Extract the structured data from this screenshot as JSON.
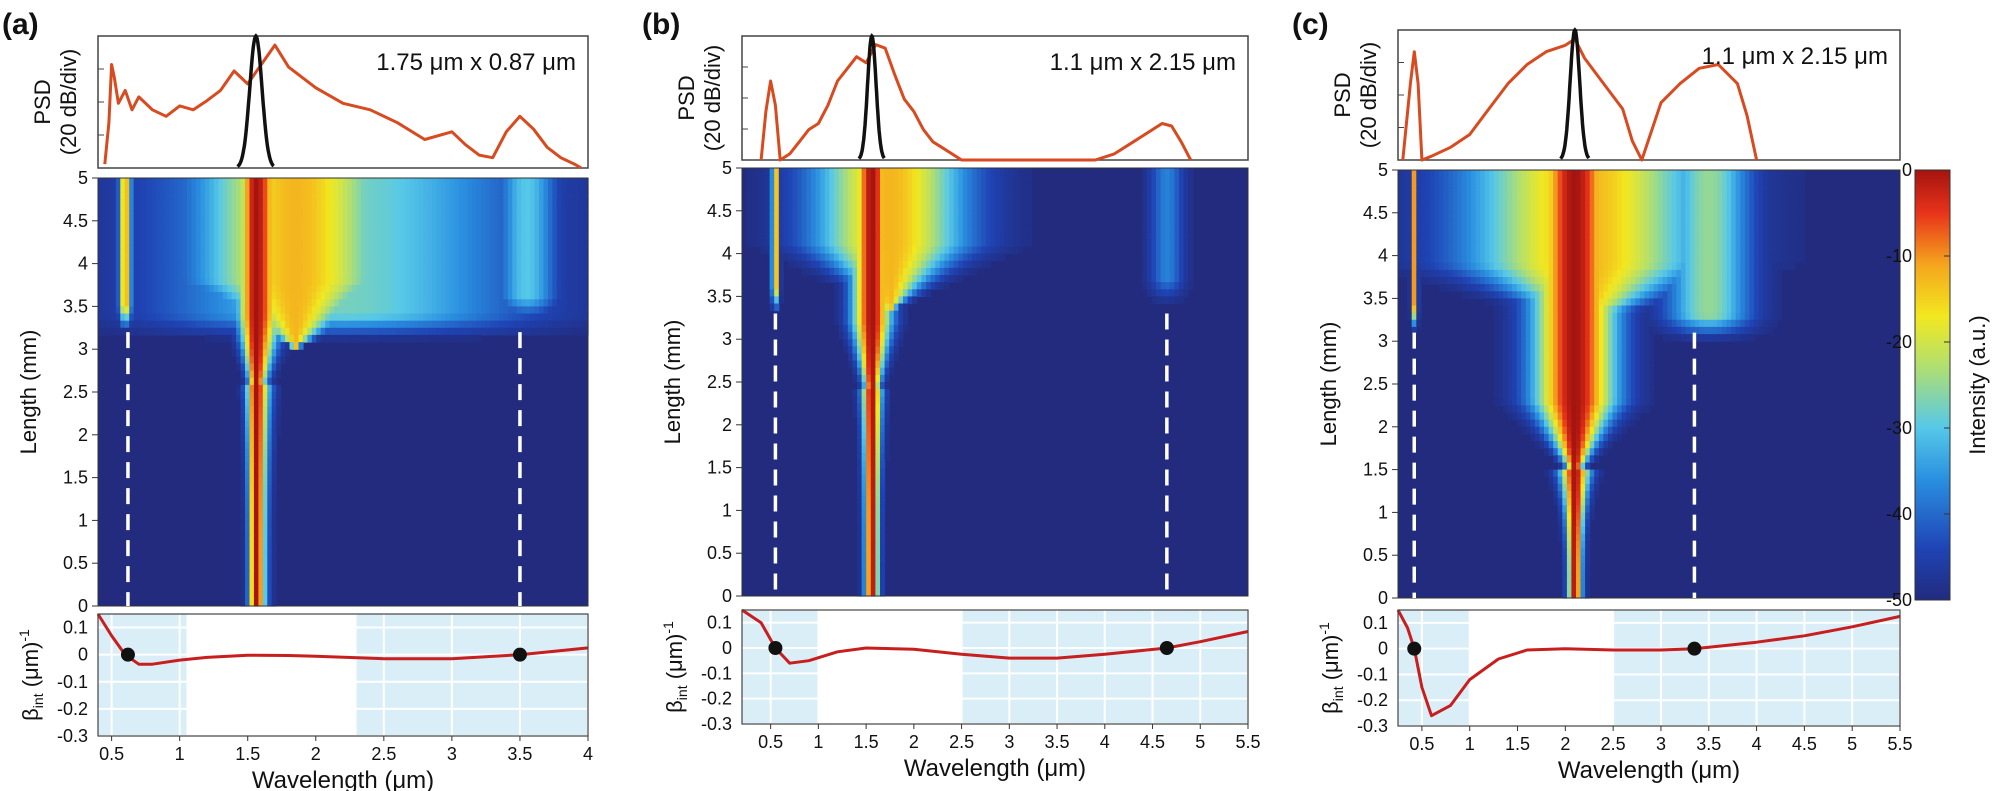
{
  "colors": {
    "heat_low": "#222b7e",
    "spectrum_line": "#d84a1f",
    "pump_line": "#111111",
    "beta_line": "#c81e1e",
    "beta_shade": "#daeef8",
    "marker_dash": "#ffffff",
    "zero_marker": "#111111"
  },
  "colorbar": {
    "label": "Intensity (a.u.)",
    "ticks": [
      "0",
      "-10",
      "-20",
      "-30",
      "-40",
      "-50"
    ],
    "range": [
      -50,
      0
    ]
  },
  "chart_data": [
    {
      "panel_label": "(a)",
      "type": "heatmap",
      "annotation": "1.75 μm x 0.87 μm",
      "psd_ylabel_line1": "PSD",
      "psd_ylabel_line2": "(20 dB/div)",
      "heat_ylabel": "Length (mm)",
      "beta_ylabel": "β",
      "beta_ylabel_sub": "int",
      "beta_ylabel_unit": " (μm)",
      "beta_ylabel_exp": "-1",
      "xlabel": "Wavelength (μm)",
      "xlim": [
        0.4,
        4.0
      ],
      "xticks": [
        "0.5",
        "1",
        "1.5",
        "2",
        "2.5",
        "3",
        "3.5",
        "4"
      ],
      "xtick_values": [
        0.5,
        1,
        1.5,
        2,
        2.5,
        3,
        3.5,
        4
      ],
      "length_ticks": [
        "0",
        "0.5",
        "1",
        "1.5",
        "2",
        "2.5",
        "3",
        "3.5",
        "4",
        "4.5",
        "5"
      ],
      "length_range": [
        0,
        5
      ],
      "beta_ticks": [
        "0.1",
        "0",
        "-0.1",
        "-0.2",
        "-0.3"
      ],
      "beta_range": [
        -0.3,
        0.15
      ],
      "pump_center": 1.56,
      "zero_dispersion_wavelengths": [
        0.62,
        3.5
      ],
      "dispersive_wave_onset_mm": 3.2,
      "shaded_regions": [
        [
          0.4,
          1.05
        ],
        [
          2.3,
          4.0
        ]
      ],
      "spectrum": {
        "x": [
          0.45,
          0.48,
          0.5,
          0.52,
          0.55,
          0.6,
          0.65,
          0.7,
          0.8,
          0.9,
          1.0,
          1.1,
          1.2,
          1.3,
          1.4,
          1.5,
          1.6,
          1.7,
          1.8,
          2.0,
          2.2,
          2.4,
          2.6,
          2.8,
          3.0,
          3.1,
          3.2,
          3.3,
          3.4,
          3.5,
          3.6,
          3.7,
          3.8,
          3.9,
          3.95
        ],
        "y": [
          3,
          35,
          80,
          70,
          50,
          60,
          45,
          55,
          45,
          40,
          48,
          45,
          52,
          60,
          75,
          65,
          80,
          95,
          78,
          62,
          50,
          45,
          35,
          22,
          28,
          18,
          10,
          8,
          28,
          40,
          30,
          16,
          8,
          3,
          0
        ]
      },
      "pump": {
        "center": 1.56,
        "width": 0.09
      },
      "beta_curve": {
        "x": [
          0.4,
          0.5,
          0.6,
          0.7,
          0.8,
          1.0,
          1.2,
          1.5,
          1.8,
          2.0,
          2.5,
          3.0,
          3.5,
          4.0
        ],
        "y": [
          0.16,
          0.07,
          0.0,
          -0.035,
          -0.035,
          -0.02,
          -0.01,
          -0.002,
          -0.003,
          -0.006,
          -0.015,
          -0.015,
          0.0,
          0.025
        ]
      },
      "blobs": [
        {
          "x": 1.56,
          "z": 0.0,
          "rx": 0.06,
          "rz": 0.0,
          "w": 0.06,
          "zmin": 0.0
        }
      ],
      "cores": [
        {
          "x0": 1.56,
          "sigma0": 0.05,
          "grow_at": 2.6,
          "sigma_max": 0.13,
          "skew": 0.7
        },
        {
          "x0": 1.85,
          "sigma0": 0.0,
          "grow_at": 3.0,
          "sigma_max": 0.5,
          "skew": 1.0
        }
      ],
      "dispersive_waves": [
        {
          "x": 0.6,
          "z0": 3.2,
          "width": 0.03
        },
        {
          "x": 2.2,
          "z0": 3.1,
          "width": 0.9,
          "level": 0.45
        },
        {
          "x": 3.55,
          "z0": 3.3,
          "width": 0.15,
          "level": 0.4
        }
      ]
    },
    {
      "panel_label": "(b)",
      "type": "heatmap",
      "annotation": "1.1 μm x 2.15 μm",
      "psd_ylabel_line1": "PSD",
      "psd_ylabel_line2": "(20 dB/div)",
      "heat_ylabel": "Length (mm)",
      "beta_ylabel": "β",
      "beta_ylabel_sub": "int",
      "beta_ylabel_unit": " (μm)",
      "beta_ylabel_exp": "-1",
      "xlabel": "Wavelength (μm)",
      "xlim": [
        0.2,
        5.5
      ],
      "xticks": [
        "0.5",
        "1",
        "1.5",
        "2",
        "2.5",
        "3",
        "3.5",
        "4",
        "4.5",
        "5",
        "5.5"
      ],
      "xtick_values": [
        0.5,
        1,
        1.5,
        2,
        2.5,
        3,
        3.5,
        4,
        4.5,
        5,
        5.5
      ],
      "length_ticks": [
        "0",
        "0.5",
        "1",
        "1.5",
        "2",
        "2.5",
        "3",
        "3.5",
        "4",
        "4.5",
        "5"
      ],
      "length_range": [
        0,
        5
      ],
      "beta_ticks": [
        "0.1",
        "0",
        "-0.1",
        "-0.2",
        "-0.3"
      ],
      "beta_range": [
        -0.3,
        0.15
      ],
      "pump_center": 1.56,
      "zero_dispersion_wavelengths": [
        0.55,
        4.65
      ],
      "dispersive_wave_onset_mm": 3.3,
      "shaded_regions": [
        [
          0.2,
          1.0
        ],
        [
          2.5,
          5.5
        ]
      ],
      "spectrum": {
        "x": [
          0.4,
          0.45,
          0.5,
          0.55,
          0.6,
          0.7,
          0.8,
          0.9,
          1.0,
          1.1,
          1.2,
          1.3,
          1.4,
          1.5,
          1.6,
          1.7,
          1.8,
          1.9,
          2.0,
          2.1,
          2.2,
          2.3,
          2.4,
          2.5,
          3.9,
          4.1,
          4.3,
          4.5,
          4.6,
          4.7,
          4.8,
          4.9
        ],
        "y": [
          0,
          40,
          65,
          45,
          0,
          5,
          15,
          25,
          30,
          45,
          65,
          75,
          85,
          80,
          95,
          92,
          70,
          50,
          40,
          25,
          15,
          10,
          5,
          0,
          0,
          5,
          15,
          25,
          30,
          28,
          15,
          0
        ]
      },
      "pump": {
        "center": 1.56,
        "width": 0.09
      },
      "beta_curve": {
        "x": [
          0.2,
          0.4,
          0.55,
          0.7,
          0.9,
          1.2,
          1.5,
          2.0,
          2.5,
          3.0,
          3.5,
          4.0,
          4.65,
          5.0,
          5.5
        ],
        "y": [
          0.3,
          0.1,
          0.0,
          -0.06,
          -0.05,
          -0.015,
          0.0,
          -0.005,
          -0.025,
          -0.04,
          -0.04,
          -0.025,
          0.0,
          0.025,
          0.065
        ]
      },
      "blobs": [],
      "cores": [
        {
          "x0": 1.56,
          "sigma0": 0.05,
          "grow_at": 2.4,
          "sigma_max": 0.14,
          "skew": 1.0
        },
        {
          "x0": 1.75,
          "sigma0": 0.0,
          "grow_at": 3.3,
          "sigma_max": 0.55,
          "skew": 1.0
        }
      ],
      "dispersive_waves": [
        {
          "x": 0.55,
          "z0": 3.3,
          "width": 0.025
        },
        {
          "x": 4.65,
          "z0": 3.4,
          "width": 0.12,
          "level": 0.25
        }
      ]
    },
    {
      "panel_label": "(c)",
      "type": "heatmap",
      "annotation": "1.1 μm x 2.15 μm",
      "psd_ylabel_line1": "PSD",
      "psd_ylabel_line2": "(20 dB/div)",
      "heat_ylabel": "Length (mm)",
      "beta_ylabel": "β",
      "beta_ylabel_sub": "int",
      "beta_ylabel_unit": " (μm)",
      "beta_ylabel_exp": "-1",
      "xlabel": "Wavelength (μm)",
      "xlim": [
        0.25,
        5.5
      ],
      "xticks": [
        "0.5",
        "1",
        "1.5",
        "2",
        "2.5",
        "3",
        "3.5",
        "4",
        "4.5",
        "5",
        "5.5"
      ],
      "xtick_values": [
        0.5,
        1,
        1.5,
        2,
        2.5,
        3,
        3.5,
        4,
        4.5,
        5,
        5.5
      ],
      "length_ticks": [
        "0",
        "0.5",
        "1",
        "1.5",
        "2",
        "2.5",
        "3",
        "3.5",
        "4",
        "4.5",
        "5"
      ],
      "length_range": [
        0,
        5
      ],
      "beta_ticks": [
        "0.1",
        "0",
        "-0.1",
        "-0.2",
        "-0.3"
      ],
      "beta_range": [
        -0.3,
        0.15
      ],
      "pump_center": 2.1,
      "zero_dispersion_wavelengths": [
        0.42,
        3.35
      ],
      "dispersive_wave_onset_mm": 3.1,
      "shaded_regions": [
        [
          0.25,
          1.0
        ],
        [
          2.5,
          5.5
        ]
      ],
      "spectrum": {
        "x": [
          0.3,
          0.38,
          0.42,
          0.46,
          0.5,
          0.6,
          0.8,
          1.0,
          1.2,
          1.4,
          1.6,
          1.8,
          2.0,
          2.1,
          2.2,
          2.4,
          2.6,
          2.7,
          2.8,
          3.0,
          3.2,
          3.4,
          3.6,
          3.8,
          3.9,
          4.0
        ],
        "y": [
          0,
          60,
          85,
          60,
          0,
          3,
          10,
          20,
          40,
          60,
          75,
          85,
          90,
          95,
          80,
          60,
          40,
          15,
          0,
          45,
          60,
          72,
          75,
          60,
          35,
          0
        ]
      },
      "pump": {
        "center": 2.1,
        "width": 0.1
      },
      "beta_curve": {
        "x": [
          0.25,
          0.35,
          0.42,
          0.5,
          0.6,
          0.8,
          1.0,
          1.3,
          1.6,
          2.0,
          2.5,
          3.0,
          3.35,
          4.0,
          4.5,
          5.0,
          5.5
        ],
        "y": [
          0.35,
          0.08,
          0.0,
          -0.15,
          -0.26,
          -0.22,
          -0.12,
          -0.04,
          -0.005,
          0.0,
          -0.005,
          -0.005,
          0.0,
          0.025,
          0.05,
          0.085,
          0.125
        ]
      },
      "blobs": [],
      "cores": [
        {
          "x0": 2.1,
          "sigma0": 0.05,
          "grow_at": 1.5,
          "sigma_max": 0.3,
          "skew": 1.0
        },
        {
          "x0": 2.2,
          "sigma0": 0.0,
          "grow_at": 3.1,
          "sigma_max": 0.85,
          "skew": 1.0
        }
      ],
      "dispersive_waves": [
        {
          "x": 0.42,
          "z0": 3.1,
          "width": 0.02
        },
        {
          "x": 3.5,
          "z0": 3.0,
          "width": 0.3,
          "level": 0.5
        }
      ]
    }
  ]
}
